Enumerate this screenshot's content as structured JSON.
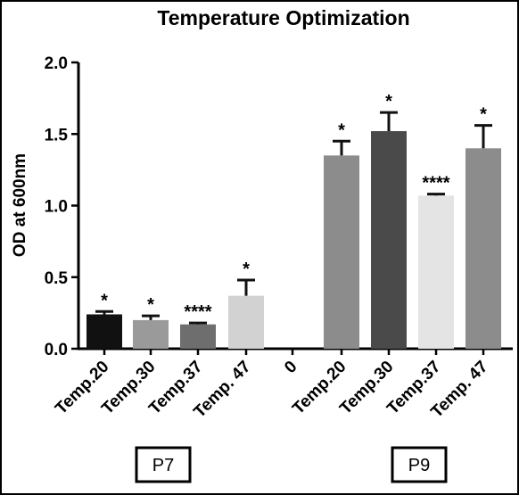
{
  "chart_data": {
    "type": "bar",
    "title": "Temperature Optimization",
    "xlabel": "",
    "ylabel": "OD at 600nm",
    "ylim": [
      0,
      2.0
    ],
    "yticks": [
      "0.0",
      "0.5",
      "1.0",
      "1.5",
      "2.0"
    ],
    "ytick_values": [
      0,
      0.5,
      1.0,
      1.5,
      2.0
    ],
    "grid": false,
    "categories": [
      "Temp.20",
      "Temp.30",
      "Temp.37",
      "Temp. 47",
      "0",
      "Temp.20",
      "Temp.30",
      "Temp.37",
      "Temp. 47"
    ],
    "values": [
      0.24,
      0.2,
      0.17,
      0.37,
      0,
      1.35,
      1.52,
      1.07,
      1.4
    ],
    "errors": [
      0.02,
      0.03,
      0.01,
      0.11,
      null,
      0.1,
      0.13,
      0.01,
      0.16
    ],
    "annotations": [
      "*",
      "*",
      "****",
      "*",
      "",
      "*",
      "*",
      "****",
      "*"
    ],
    "colors": [
      "#111111",
      "#9a9a9a",
      "#6e6e6e",
      "#d2d2d2",
      null,
      "#8c8c8c",
      "#4a4a4a",
      "#e4e4e4",
      "#8c8c8c"
    ],
    "groups": [
      {
        "label": "P7",
        "indices": [
          0,
          1,
          2,
          3
        ]
      },
      {
        "label": "P9",
        "indices": [
          5,
          6,
          7,
          8
        ]
      }
    ]
  }
}
